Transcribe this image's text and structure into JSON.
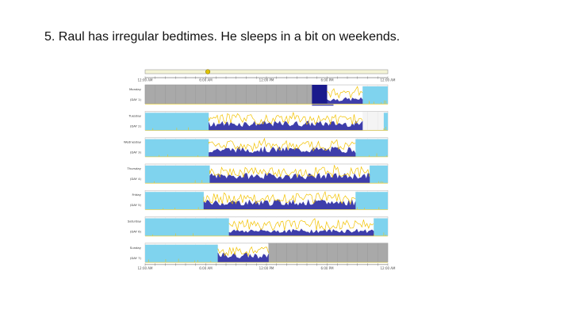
{
  "slide": {
    "title": "5. Raul has irregular bedtimes.  He sleeps in a bit on weekends."
  },
  "chart_data": {
    "type": "actogram",
    "x_unit": "hours from midnight",
    "x_range": [
      0,
      24
    ],
    "ticks_top": [
      {
        "hour": 0,
        "label": "12:00 AM"
      },
      {
        "hour": 6,
        "label": "6:00 AM"
      },
      {
        "hour": 12,
        "label": "12:00 PM"
      },
      {
        "hour": 18,
        "label": "6:00 PM"
      },
      {
        "hour": 24,
        "label": "12:00 AM"
      }
    ],
    "ticks_bottom": [
      {
        "hour": 0,
        "label": "12:00 AM"
      },
      {
        "hour": 6,
        "label": "6:00 AM"
      },
      {
        "hour": 12,
        "label": "12:00 PM"
      },
      {
        "hour": 18,
        "label": "6:00 PM"
      },
      {
        "hour": 24,
        "label": "12:00 AM"
      }
    ],
    "colors": {
      "sleep": "#7fd3ee",
      "no_data": "#a9a9a9",
      "activity": "#1c1c9c",
      "light": "#f2c200",
      "marker": "#1a1a8c",
      "axis": "#7a7a7a"
    },
    "days": [
      {
        "day": "Monday",
        "label": "(DAY 1)",
        "nodata": [
          [
            0,
            16.5
          ]
        ],
        "marker": [
          16.5,
          18.0
        ],
        "active": [
          18.0,
          21.5
        ],
        "sleep": [
          [
            21.5,
            24
          ]
        ],
        "intensity": 0.55
      },
      {
        "day": "Tuesday",
        "label": "(DAY 2)",
        "nodata": [],
        "sleep": [
          [
            0,
            6.3
          ],
          [
            23.6,
            24
          ]
        ],
        "active": [
          6.3,
          21.5
        ],
        "intensity": 0.8
      },
      {
        "day": "Wednesday",
        "label": "(DAY 3)",
        "nodata": [],
        "sleep": [
          [
            0,
            6.3
          ],
          [
            20.8,
            24
          ]
        ],
        "active": [
          6.3,
          20.8
        ],
        "intensity": 0.85
      },
      {
        "day": "Thursday",
        "label": "(DAY 4)",
        "nodata": [],
        "sleep": [
          [
            0,
            6.4
          ],
          [
            22.2,
            24
          ]
        ],
        "active": [
          6.4,
          22.2
        ],
        "intensity": 0.85
      },
      {
        "day": "Friday",
        "label": "(DAY 5)",
        "nodata": [],
        "sleep": [
          [
            0,
            5.8
          ],
          [
            20.8,
            24
          ]
        ],
        "active": [
          5.8,
          20.8
        ],
        "intensity": 0.85
      },
      {
        "day": "Saturday",
        "label": "(DAY 6)",
        "nodata": [],
        "sleep": [
          [
            0,
            8.3
          ],
          [
            22.6,
            24
          ]
        ],
        "active": [
          8.3,
          22.6
        ],
        "intensity": 0.6
      },
      {
        "day": "Sunday",
        "label": "(DAY 7)",
        "nodata": [
          [
            12.2,
            24
          ]
        ],
        "sleep": [
          [
            0,
            7.2
          ]
        ],
        "active": [
          7.2,
          12.2
        ],
        "intensity": 0.8
      }
    ]
  }
}
